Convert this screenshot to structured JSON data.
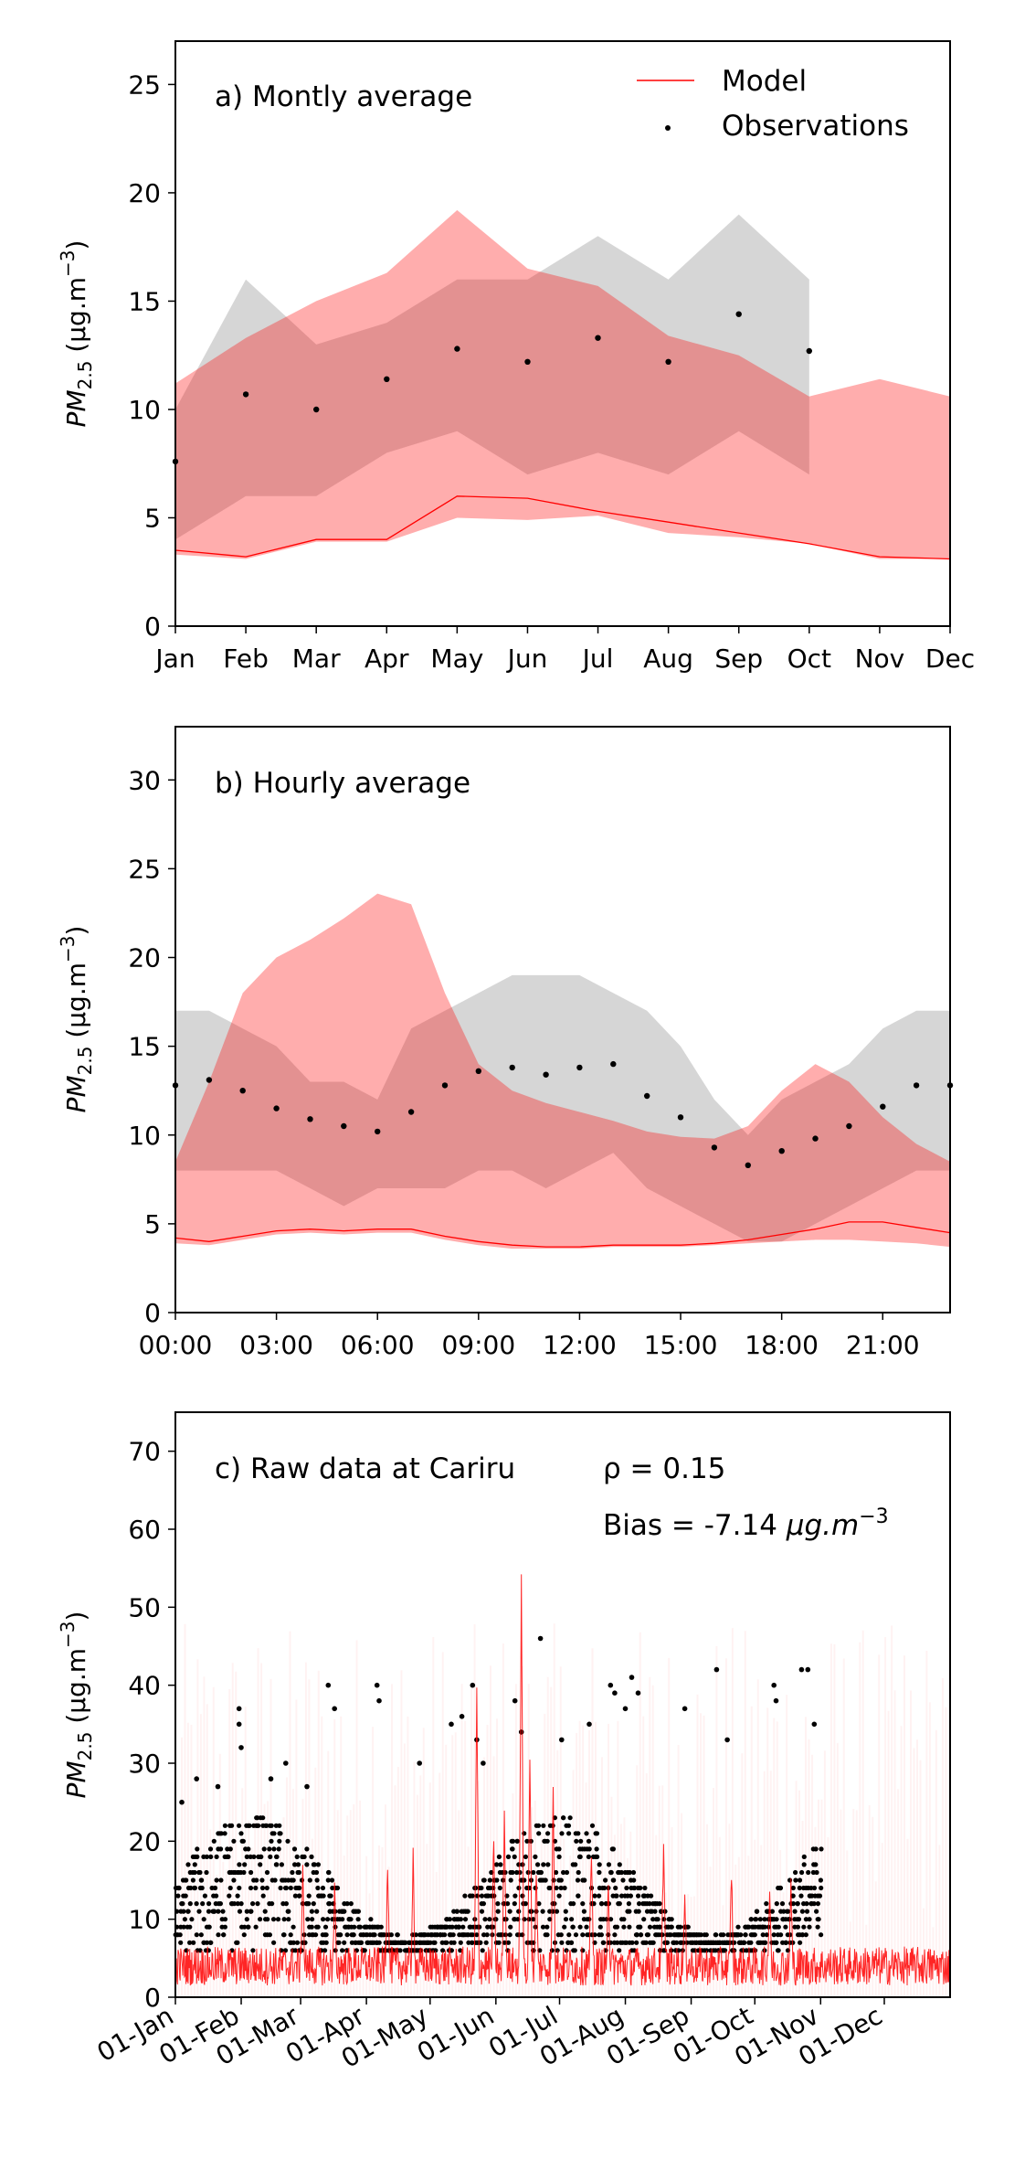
{
  "chart_data": [
    {
      "type": "line",
      "panel": "a",
      "annotation": "a) Montly average",
      "ylabel": "PM2.5 (µg.m⁻³)",
      "ylabel_parts": {
        "base": "PM",
        "sub": "2.5",
        "unit": " (μg.m",
        "exp": "−3",
        "close": ")"
      },
      "xlim": [
        0,
        11
      ],
      "ylim": [
        0,
        27
      ],
      "yticks": [
        0,
        5,
        10,
        15,
        20,
        25
      ],
      "x_tick_labels": [
        "Jan",
        "Feb",
        "Mar",
        "Apr",
        "May",
        "Jun",
        "Jul",
        "Aug",
        "Sep",
        "Oct",
        "Nov",
        "Dec"
      ],
      "legend": {
        "position": "top-right",
        "entries": [
          {
            "label": "Model",
            "marker": "line",
            "color": "#ff0000"
          },
          {
            "label": "Observations",
            "marker": "dot",
            "color": "#000000"
          }
        ]
      },
      "series": [
        {
          "name": "Model",
          "kind": "line",
          "color": "#ff0000",
          "x": [
            0,
            1,
            2,
            3,
            4,
            5,
            6,
            7,
            8,
            9,
            10,
            11
          ],
          "values": [
            3.5,
            3.2,
            4.0,
            4.0,
            6.0,
            5.9,
            5.3,
            4.8,
            4.3,
            3.8,
            3.2,
            3.1
          ]
        },
        {
          "name": "Model range",
          "kind": "band",
          "color": "#ff0000",
          "opacity": 0.32,
          "x": [
            0,
            1,
            2,
            3,
            4,
            5,
            6,
            7,
            8,
            9,
            10,
            11
          ],
          "lower": [
            3.3,
            3.1,
            3.9,
            3.9,
            5.0,
            4.9,
            5.1,
            4.3,
            4.1,
            3.8,
            3.1,
            3.1
          ],
          "upper": [
            11.2,
            13.3,
            15.0,
            16.3,
            19.2,
            16.5,
            15.7,
            13.4,
            12.5,
            10.6,
            11.4,
            10.6
          ]
        },
        {
          "name": "Observations",
          "kind": "scatter",
          "color": "#000000",
          "x": [
            0,
            1,
            2,
            3,
            4,
            5,
            6,
            7,
            8,
            9
          ],
          "values": [
            7.6,
            10.7,
            10.0,
            11.4,
            12.8,
            12.2,
            13.3,
            12.2,
            14.4,
            12.7
          ]
        },
        {
          "name": "Observations range",
          "kind": "band",
          "color": "#999999",
          "opacity": 0.4,
          "x": [
            0,
            1,
            2,
            3,
            4,
            5,
            6,
            7,
            8,
            9
          ],
          "lower": [
            4.0,
            6.0,
            6.0,
            8.0,
            9.0,
            7.0,
            8.0,
            7.0,
            9.0,
            7.0
          ],
          "upper": [
            10.0,
            16.0,
            13.0,
            14.0,
            16.0,
            16.0,
            18.0,
            16.0,
            19.0,
            16.0
          ]
        }
      ]
    },
    {
      "type": "line",
      "panel": "b",
      "annotation": "b) Hourly average",
      "ylabel": "PM2.5 (µg.m⁻³)",
      "ylabel_parts": {
        "base": "PM",
        "sub": "2.5",
        "unit": " (μg.m",
        "exp": "−3",
        "close": ")"
      },
      "xlim": [
        0,
        23
      ],
      "ylim": [
        0,
        33
      ],
      "yticks": [
        0,
        5,
        10,
        15,
        20,
        25,
        30
      ],
      "x_tick_positions": [
        0,
        3,
        6,
        9,
        12,
        15,
        18,
        21
      ],
      "x_tick_labels": [
        "00:00",
        "03:00",
        "06:00",
        "09:00",
        "12:00",
        "15:00",
        "18:00",
        "21:00"
      ],
      "series": [
        {
          "name": "Model",
          "kind": "line",
          "color": "#ff0000",
          "x": [
            0,
            1,
            2,
            3,
            4,
            5,
            6,
            7,
            8,
            9,
            10,
            11,
            12,
            13,
            14,
            15,
            16,
            17,
            18,
            19,
            20,
            21,
            22,
            23
          ],
          "values": [
            4.2,
            4.0,
            4.3,
            4.6,
            4.7,
            4.6,
            4.7,
            4.7,
            4.3,
            4.0,
            3.8,
            3.7,
            3.7,
            3.8,
            3.8,
            3.8,
            3.9,
            4.1,
            4.4,
            4.7,
            5.1,
            5.1,
            4.8,
            4.5
          ]
        },
        {
          "name": "Model range",
          "kind": "band",
          "color": "#ff0000",
          "opacity": 0.32,
          "x": [
            0,
            1,
            2,
            3,
            4,
            5,
            6,
            7,
            8,
            9,
            10,
            11,
            12,
            13,
            14,
            15,
            16,
            17,
            18,
            19,
            20,
            21,
            22,
            23
          ],
          "lower": [
            3.9,
            3.8,
            4.1,
            4.4,
            4.5,
            4.4,
            4.5,
            4.5,
            4.1,
            3.8,
            3.6,
            3.6,
            3.6,
            3.7,
            3.7,
            3.7,
            3.8,
            3.9,
            4.0,
            4.1,
            4.1,
            4.0,
            3.9,
            3.7
          ],
          "upper": [
            8.5,
            13.0,
            18.0,
            20.0,
            21.0,
            22.2,
            23.6,
            23.0,
            18.0,
            14.0,
            12.5,
            11.8,
            11.3,
            10.8,
            10.2,
            9.9,
            9.8,
            10.5,
            12.5,
            14.0,
            13.0,
            11.0,
            9.5,
            8.5
          ]
        },
        {
          "name": "Observations",
          "kind": "scatter",
          "color": "#000000",
          "x": [
            0,
            1,
            2,
            3,
            4,
            5,
            6,
            7,
            8,
            9,
            10,
            11,
            12,
            13,
            14,
            15,
            16,
            17,
            18,
            19,
            20,
            21,
            22,
            23
          ],
          "values": [
            12.8,
            13.1,
            12.5,
            11.5,
            10.9,
            10.5,
            10.2,
            11.3,
            12.8,
            13.6,
            13.8,
            13.4,
            13.8,
            14.0,
            12.2,
            11.0,
            9.3,
            8.3,
            9.1,
            9.8,
            10.5,
            11.6,
            12.8,
            12.8
          ]
        },
        {
          "name": "Observations range",
          "kind": "band",
          "color": "#999999",
          "opacity": 0.4,
          "x": [
            0,
            1,
            2,
            3,
            4,
            5,
            6,
            7,
            8,
            9,
            10,
            11,
            12,
            13,
            14,
            15,
            16,
            17,
            18,
            19,
            20,
            21,
            22,
            23
          ],
          "lower": [
            8,
            8,
            8,
            8,
            7,
            6,
            7,
            7,
            7,
            8,
            8,
            7,
            8,
            9,
            7,
            6,
            5,
            4,
            4,
            5,
            6,
            7,
            8,
            8
          ],
          "upper": [
            17,
            17,
            16,
            15,
            13,
            13,
            12,
            16,
            17,
            18,
            19,
            19,
            19,
            18,
            17,
            15,
            12,
            10,
            12,
            13,
            14,
            16,
            17,
            17
          ]
        }
      ]
    },
    {
      "type": "scatter",
      "panel": "c",
      "annotation": "c) Raw data at Cariru",
      "stat_rho": "ρ = 0.15",
      "stat_bias_prefix": "Bias = -7.14 ",
      "stat_bias_unit": "μg.m",
      "stat_bias_exp": "−3",
      "ylabel": "PM2.5 (µg.m⁻³)",
      "ylabel_parts": {
        "base": "PM",
        "sub": "2.5",
        "unit": " (μg.m",
        "exp": "−3",
        "close": ")"
      },
      "xlim": [
        0,
        365
      ],
      "ylim": [
        0,
        75
      ],
      "yticks": [
        0,
        10,
        20,
        30,
        40,
        50,
        60,
        70
      ],
      "x_tick_positions": [
        0,
        31,
        59,
        90,
        120,
        151,
        181,
        212,
        243,
        273,
        304,
        334
      ],
      "x_tick_labels": [
        "01-Jan",
        "01-Feb",
        "01-Mar",
        "01-Apr",
        "01-May",
        "01-Jun",
        "01-Jul",
        "01-Aug",
        "01-Sep",
        "01-Oct",
        "01-Nov",
        "01-Dec"
      ],
      "observations_end": 304,
      "series": [
        {
          "name": "Model",
          "kind": "line",
          "color": "#ff0000",
          "typical": 4,
          "peaks": [
            [
              60,
              16
            ],
            [
              75,
              14
            ],
            [
              100,
              17
            ],
            [
              112,
              18
            ],
            [
              142,
              39
            ],
            [
              150,
              21
            ],
            [
              155,
              23
            ],
            [
              163,
              53
            ],
            [
              167,
              30
            ],
            [
              170,
              17
            ],
            [
              178,
              26
            ],
            [
              196,
              19
            ],
            [
              204,
              15
            ],
            [
              230,
              20
            ],
            [
              240,
              13
            ],
            [
              262,
              16
            ],
            [
              280,
              14
            ],
            [
              290,
              15
            ]
          ]
        },
        {
          "name": "Observations",
          "kind": "scatter",
          "color": "#000000",
          "spikes": [
            [
              3,
              25
            ],
            [
              10,
              28
            ],
            [
              20,
              27
            ],
            [
              30,
              37
            ],
            [
              30,
              35
            ],
            [
              31,
              32
            ],
            [
              45,
              28
            ],
            [
              52,
              30
            ],
            [
              62,
              27
            ],
            [
              72,
              40
            ],
            [
              75,
              37
            ],
            [
              95,
              40
            ],
            [
              96,
              38
            ],
            [
              115,
              30
            ],
            [
              130,
              35
            ],
            [
              135,
              36
            ],
            [
              140,
              40
            ],
            [
              142,
              33
            ],
            [
              145,
              30
            ],
            [
              160,
              38
            ],
            [
              163,
              34
            ],
            [
              172,
              46
            ],
            [
              182,
              33
            ],
            [
              195,
              35
            ],
            [
              205,
              40
            ],
            [
              207,
              39
            ],
            [
              212,
              37
            ],
            [
              215,
              41
            ],
            [
              218,
              39
            ],
            [
              240,
              37
            ],
            [
              255,
              42
            ],
            [
              260,
              33
            ],
            [
              282,
              40
            ],
            [
              283,
              38
            ],
            [
              295,
              42
            ],
            [
              298,
              42
            ],
            [
              301,
              35
            ]
          ]
        }
      ]
    }
  ]
}
